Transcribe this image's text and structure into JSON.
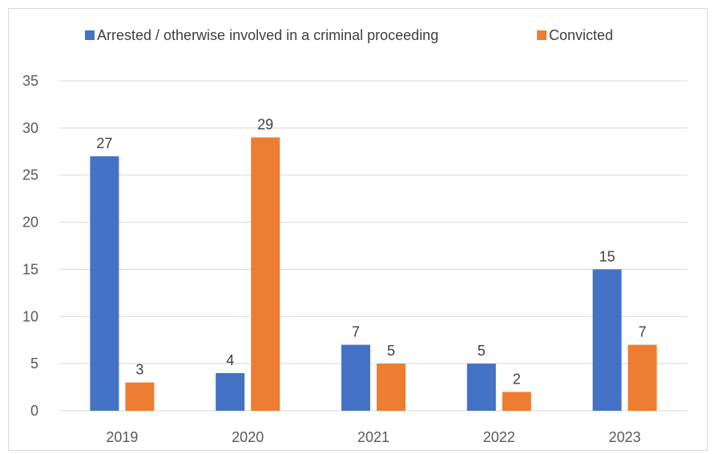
{
  "chart_data": {
    "type": "bar",
    "categories": [
      "2019",
      "2020",
      "2021",
      "2022",
      "2023"
    ],
    "series": [
      {
        "name": "Arrested / otherwise involved in a criminal proceeding",
        "values": [
          27,
          4,
          7,
          5,
          15
        ],
        "color": "#4472c4"
      },
      {
        "name": "Convicted",
        "values": [
          3,
          29,
          5,
          2,
          7
        ],
        "color": "#ed7d31"
      }
    ],
    "title": "",
    "xlabel": "",
    "ylabel": "",
    "ylim": [
      0,
      35
    ],
    "yticks": [
      0,
      5,
      10,
      15,
      20,
      25,
      30,
      35
    ],
    "grid": true,
    "legend_position": "top",
    "data_labels": true
  },
  "colors": {
    "gridline": "#d9d9d9",
    "axis_text": "#595959",
    "label_text": "#404040"
  }
}
